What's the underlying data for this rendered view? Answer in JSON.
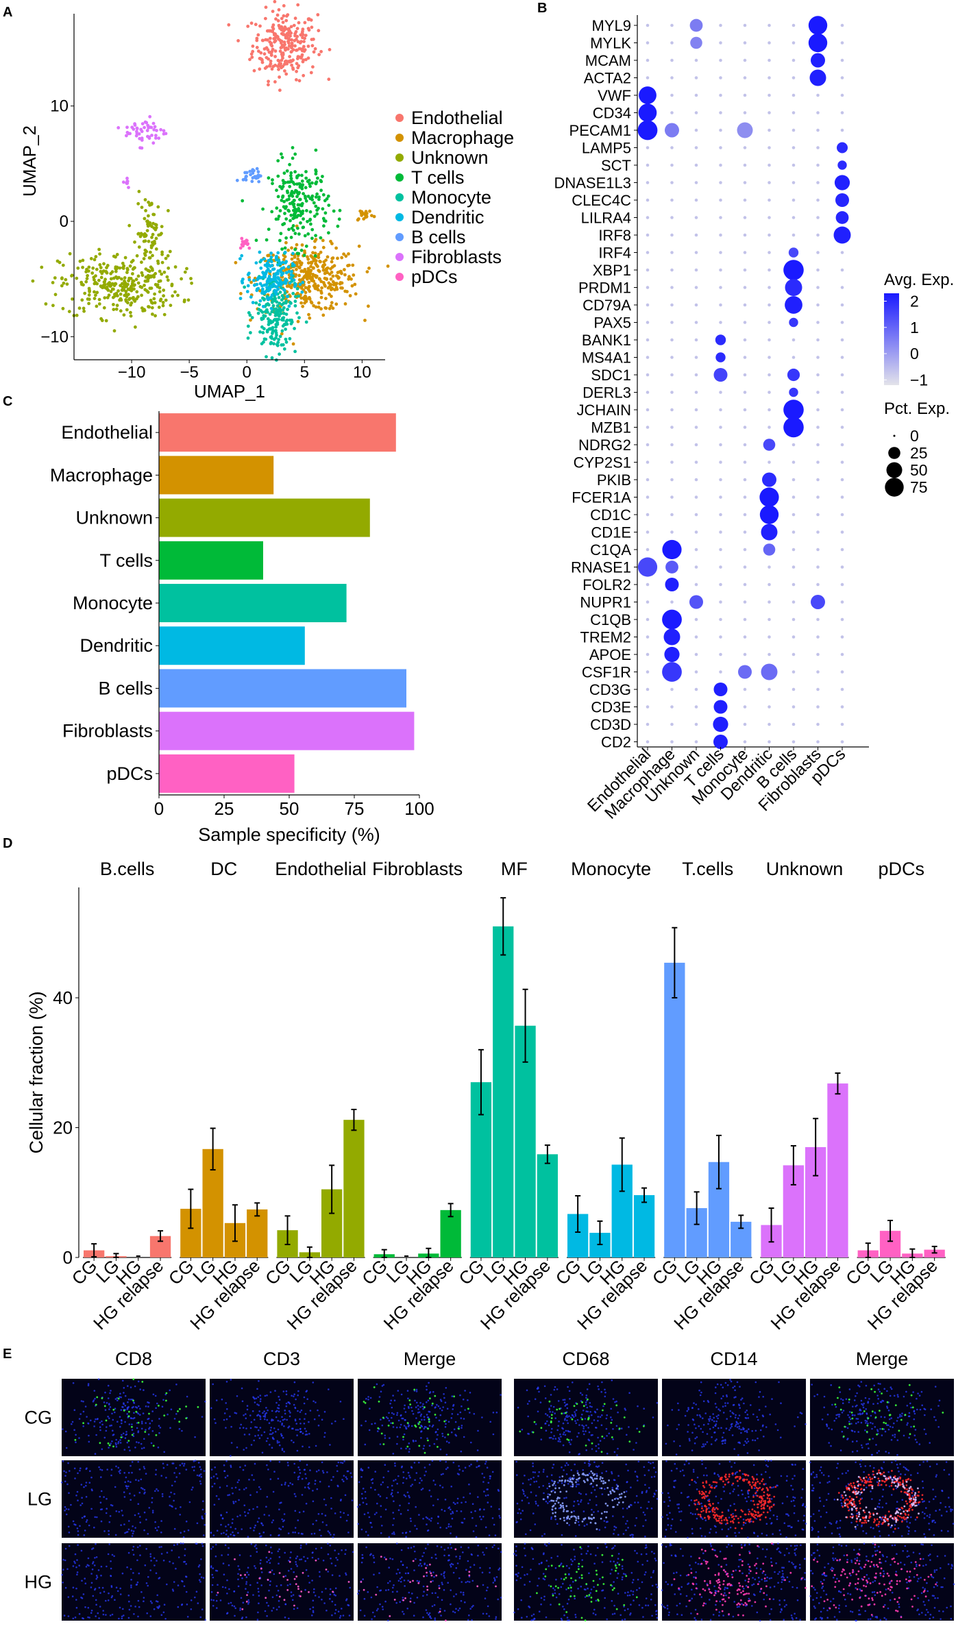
{
  "panels": {
    "a": "A",
    "b": "B",
    "c": "C",
    "d": "D",
    "e": "E"
  },
  "colors": {
    "Endothelial": "#F8766D",
    "Macrophage": "#D39200",
    "Unknown": "#93AA00",
    "T cells": "#00BA38",
    "Monocyte": "#00C19F",
    "Dendritic": "#00B9E3",
    "B cells": "#619CFF",
    "Fibroblasts": "#DB72FB",
    "pDCs": "#FF61C3",
    "dot_low": "#d9d9e6",
    "dot_high": "#1a1aff",
    "axis": "#000000"
  },
  "chart_data": [
    {
      "id": "umap",
      "type": "scatter",
      "xlabel": "UMAP_1",
      "ylabel": "UMAP_2",
      "xlim": [
        -15,
        12
      ],
      "ylim": [
        -12,
        18
      ],
      "xticks": [
        "-10",
        "-5",
        "0",
        "5",
        "10"
      ],
      "xtick_values": [
        -10,
        -5,
        0,
        5,
        10
      ],
      "yticks": [
        "10",
        "0",
        "-10"
      ],
      "ytick_values": [
        10,
        0,
        -10
      ],
      "legend": [
        "Endothelial",
        "Macrophage",
        "Unknown",
        "T cells",
        "Monocyte",
        "Dendritic",
        "B cells",
        "Fibroblasts",
        "pDCs"
      ],
      "clusters": [
        {
          "name": "Endothelial",
          "cx": 3.3,
          "cy": 15.3,
          "sx": 1.4,
          "sy": 1.5,
          "n": 260
        },
        {
          "name": "Macrophage",
          "cx": 5.3,
          "cy": -5.0,
          "sx": 2.2,
          "sy": 1.4,
          "n": 380
        },
        {
          "name": "Macrophage",
          "cx": 10.2,
          "cy": 0.6,
          "sx": 0.4,
          "sy": 0.3,
          "n": 18
        },
        {
          "name": "Unknown",
          "cx": -11.0,
          "cy": -5.5,
          "sx": 2.6,
          "sy": 1.4,
          "n": 320
        },
        {
          "name": "Unknown",
          "cx": -8.4,
          "cy": -1.0,
          "sx": 0.6,
          "sy": 1.6,
          "n": 70
        },
        {
          "name": "T cells",
          "cx": 4.5,
          "cy": 1.5,
          "sx": 1.3,
          "sy": 1.8,
          "n": 220
        },
        {
          "name": "Monocyte",
          "cx": 2.5,
          "cy": -8.0,
          "sx": 0.9,
          "sy": 1.8,
          "n": 200
        },
        {
          "name": "Dendritic",
          "cx": 2.0,
          "cy": -5.0,
          "sx": 1.0,
          "sy": 1.1,
          "n": 160
        },
        {
          "name": "B cells",
          "cx": 0.5,
          "cy": 4.0,
          "sx": 0.4,
          "sy": 0.3,
          "n": 30
        },
        {
          "name": "Fibroblasts",
          "cx": -8.8,
          "cy": 7.8,
          "sx": 0.9,
          "sy": 0.6,
          "n": 50
        },
        {
          "name": "Fibroblasts",
          "cx": -10.5,
          "cy": 3.5,
          "sx": 0.2,
          "sy": 0.3,
          "n": 8
        },
        {
          "name": "pDCs",
          "cx": -0.2,
          "cy": -1.8,
          "sx": 0.3,
          "sy": 0.3,
          "n": 14
        }
      ]
    },
    {
      "id": "dotplot",
      "type": "scatter",
      "genes": [
        "MYL9",
        "MYLK",
        "MCAM",
        "ACTA2",
        "VWF",
        "CD34",
        "PECAM1",
        "LAMP5",
        "SCT",
        "DNASE1L3",
        "CLEC4C",
        "LILRA4",
        "IRF8",
        "IRF4",
        "XBP1",
        "PRDM1",
        "CD79A",
        "PAX5",
        "BANK1",
        "MS4A1",
        "SDC1",
        "DERL3",
        "JCHAIN",
        "MZB1",
        "NDRG2",
        "CYP2S1",
        "PKIB",
        "FCER1A",
        "CD1C",
        "CD1E",
        "C1QA",
        "RNASE1",
        "FOLR2",
        "NUPR1",
        "C1QB",
        "TREM2",
        "APOE",
        "CSF1R",
        "CD3G",
        "CD3E",
        "CD3D",
        "CD2"
      ],
      "cell_types": [
        "Endothelial",
        "Macrophage",
        "Unknown",
        "T cells",
        "Monocyte",
        "Dendritic",
        "B cells",
        "Fibroblasts",
        "pDCs"
      ],
      "highlights": [
        {
          "gene": "MYL9",
          "col": "Fibroblasts",
          "pct": 75,
          "exp": 2.3
        },
        {
          "gene": "MYLK",
          "col": "Fibroblasts",
          "pct": 75,
          "exp": 2.3
        },
        {
          "gene": "MCAM",
          "col": "Fibroblasts",
          "pct": 40,
          "exp": 2.2
        },
        {
          "gene": "ACTA2",
          "col": "Fibroblasts",
          "pct": 55,
          "exp": 2.2
        },
        {
          "gene": "VWF",
          "col": "Endothelial",
          "pct": 65,
          "exp": 2.3
        },
        {
          "gene": "CD34",
          "col": "Endothelial",
          "pct": 70,
          "exp": 2.3
        },
        {
          "gene": "PECAM1",
          "col": "Endothelial",
          "pct": 85,
          "exp": 2.3
        },
        {
          "gene": "LAMP5",
          "col": "pDCs",
          "pct": 20,
          "exp": 2.0
        },
        {
          "gene": "SCT",
          "col": "pDCs",
          "pct": 12,
          "exp": 2.0
        },
        {
          "gene": "DNASE1L3",
          "col": "pDCs",
          "pct": 45,
          "exp": 2.2
        },
        {
          "gene": "CLEC4C",
          "col": "pDCs",
          "pct": 35,
          "exp": 2.1
        },
        {
          "gene": "LILRA4",
          "col": "pDCs",
          "pct": 30,
          "exp": 2.1
        },
        {
          "gene": "IRF8",
          "col": "pDCs",
          "pct": 60,
          "exp": 2.2
        },
        {
          "gene": "IRF4",
          "col": "B cells",
          "pct": 15,
          "exp": 1.5
        },
        {
          "gene": "XBP1",
          "col": "B cells",
          "pct": 90,
          "exp": 2.3
        },
        {
          "gene": "PRDM1",
          "col": "B cells",
          "pct": 60,
          "exp": 2.0
        },
        {
          "gene": "CD79A",
          "col": "B cells",
          "pct": 65,
          "exp": 2.2
        },
        {
          "gene": "PAX5",
          "col": "B cells",
          "pct": 12,
          "exp": 1.8
        },
        {
          "gene": "BANK1",
          "col": "T cells",
          "pct": 18,
          "exp": 2.0
        },
        {
          "gene": "MS4A1",
          "col": "T cells",
          "pct": 15,
          "exp": 2.0
        },
        {
          "gene": "SDC1",
          "col": "T cells",
          "pct": 35,
          "exp": 1.6
        },
        {
          "gene": "SDC1",
          "col": "B cells",
          "pct": 28,
          "exp": 1.8
        },
        {
          "gene": "DERL3",
          "col": "B cells",
          "pct": 12,
          "exp": 1.8
        },
        {
          "gene": "JCHAIN",
          "col": "B cells",
          "pct": 90,
          "exp": 2.3
        },
        {
          "gene": "MZB1",
          "col": "B cells",
          "pct": 90,
          "exp": 2.3
        },
        {
          "gene": "NDRG2",
          "col": "Dendritic",
          "pct": 25,
          "exp": 1.5
        },
        {
          "gene": "PKIB",
          "col": "Dendritic",
          "pct": 40,
          "exp": 2.0
        },
        {
          "gene": "FCER1A",
          "col": "Dendritic",
          "pct": 80,
          "exp": 2.3
        },
        {
          "gene": "CD1C",
          "col": "Dendritic",
          "pct": 75,
          "exp": 2.3
        },
        {
          "gene": "CD1E",
          "col": "Dendritic",
          "pct": 55,
          "exp": 2.2
        },
        {
          "gene": "C1QA",
          "col": "Macrophage",
          "pct": 80,
          "exp": 2.3
        },
        {
          "gene": "C1QA",
          "col": "Dendritic",
          "pct": 25,
          "exp": 1.0
        },
        {
          "gene": "RNASE1",
          "col": "Endothelial",
          "pct": 80,
          "exp": 1.5
        },
        {
          "gene": "RNASE1",
          "col": "Macrophage",
          "pct": 30,
          "exp": 1.2
        },
        {
          "gene": "FOLR2",
          "col": "Macrophage",
          "pct": 35,
          "exp": 2.2
        },
        {
          "gene": "NUPR1",
          "col": "Unknown",
          "pct": 35,
          "exp": 1.3
        },
        {
          "gene": "NUPR1",
          "col": "Fibroblasts",
          "pct": 40,
          "exp": 1.5
        },
        {
          "gene": "C1QB",
          "col": "Macrophage",
          "pct": 85,
          "exp": 2.3
        },
        {
          "gene": "TREM2",
          "col": "Macrophage",
          "pct": 55,
          "exp": 2.2
        },
        {
          "gene": "APOE",
          "col": "Macrophage",
          "pct": 45,
          "exp": 2.2
        },
        {
          "gene": "CSF1R",
          "col": "Macrophage",
          "pct": 85,
          "exp": 1.8
        },
        {
          "gene": "CSF1R",
          "col": "Monocyte",
          "pct": 35,
          "exp": 0.9
        },
        {
          "gene": "CSF1R",
          "col": "Dendritic",
          "pct": 55,
          "exp": 0.9
        },
        {
          "gene": "CD3G",
          "col": "T cells",
          "pct": 35,
          "exp": 2.2
        },
        {
          "gene": "CD3E",
          "col": "T cells",
          "pct": 35,
          "exp": 2.2
        },
        {
          "gene": "CD3D",
          "col": "T cells",
          "pct": 45,
          "exp": 2.2
        },
        {
          "gene": "CD2",
          "col": "T cells",
          "pct": 40,
          "exp": 2.2
        },
        {
          "gene": "PECAM1",
          "col": "Macrophage",
          "pct": 40,
          "exp": 0.6
        },
        {
          "gene": "PECAM1",
          "col": "Monocyte",
          "pct": 50,
          "exp": 0.3
        },
        {
          "gene": "MYL9",
          "col": "Unknown",
          "pct": 30,
          "exp": 0.6
        },
        {
          "gene": "MYLK",
          "col": "Unknown",
          "pct": 25,
          "exp": 0.5
        }
      ],
      "legend_exp_title": "Avg. Exp.",
      "legend_exp_ticks": [
        "2",
        "1",
        "0",
        "−1"
      ],
      "legend_exp_values": [
        2,
        1,
        0,
        -1
      ],
      "legend_pct_title": "Pct. Exp.",
      "legend_pct_ticks": [
        "0",
        "25",
        "50",
        "75"
      ],
      "legend_pct_values": [
        0,
        25,
        50,
        75
      ]
    },
    {
      "id": "specificity",
      "type": "bar",
      "orientation": "horizontal",
      "categories": [
        "Endothelial",
        "Macrophage",
        "Unknown",
        "T cells",
        "Monocyte",
        "Dendritic",
        "B cells",
        "Fibroblasts",
        "pDCs"
      ],
      "values": [
        91,
        44,
        81,
        40,
        72,
        56,
        95,
        98,
        52
      ],
      "xlabel": "Sample specificity (%)",
      "xlim": [
        0,
        100
      ],
      "xticks": [
        "0",
        "25",
        "50",
        "75",
        "100"
      ],
      "xtick_values": [
        0,
        25,
        50,
        75,
        100
      ]
    },
    {
      "id": "fraction",
      "type": "bar",
      "ylabel": "Cellular fraction (%)",
      "ylim": [
        0,
        57
      ],
      "yticks": [
        "0",
        "20",
        "40"
      ],
      "ytick_values": [
        0,
        20,
        40
      ],
      "groups": [
        "CG",
        "LG",
        "HG",
        "HG relapse"
      ],
      "facets": [
        {
          "title": "B.cells",
          "color_key": "Endothelial",
          "values": [
            1.1,
            0.2,
            0.0,
            3.3
          ],
          "errors": [
            1.0,
            0.4,
            0.0,
            0.8
          ]
        },
        {
          "title": "DC",
          "color_key": "Macrophage",
          "values": [
            7.5,
            16.7,
            5.3,
            7.4
          ],
          "errors": [
            3.0,
            3.2,
            2.8,
            1.0
          ]
        },
        {
          "title": "Endothelial",
          "color_key": "Unknown",
          "values": [
            4.2,
            0.8,
            10.5,
            21.2
          ],
          "errors": [
            2.2,
            0.8,
            3.7,
            1.6
          ]
        },
        {
          "title": "Fibroblasts",
          "color_key": "T cells",
          "values": [
            0.5,
            0.0,
            0.6,
            7.3
          ],
          "errors": [
            0.7,
            0.0,
            0.8,
            1.0
          ]
        },
        {
          "title": "MF",
          "color_key": "Monocyte",
          "values": [
            27.0,
            51.0,
            35.7,
            15.9
          ],
          "errors": [
            5.0,
            4.4,
            5.6,
            1.4
          ]
        },
        {
          "title": "Monocyte",
          "color_key": "Dendritic",
          "values": [
            6.7,
            3.8,
            14.3,
            9.6
          ],
          "errors": [
            2.8,
            1.8,
            4.1,
            1.1
          ]
        },
        {
          "title": "T.cells",
          "color_key": "B cells",
          "values": [
            45.4,
            7.6,
            14.7,
            5.5
          ],
          "errors": [
            5.4,
            2.5,
            4.1,
            1.0
          ]
        },
        {
          "title": "Unknown",
          "color_key": "Fibroblasts",
          "values": [
            5.0,
            14.2,
            17.0,
            26.8
          ],
          "errors": [
            2.6,
            3.0,
            4.4,
            1.6
          ]
        },
        {
          "title": "pDCs",
          "color_key": "pDCs",
          "values": [
            1.1,
            4.1,
            0.6,
            1.2
          ],
          "errors": [
            1.1,
            1.6,
            0.7,
            0.5
          ]
        }
      ]
    }
  ],
  "panel_e": {
    "col_labels": [
      "CD8",
      "CD3",
      "Merge",
      "CD68",
      "CD14",
      "Merge"
    ],
    "row_labels": [
      "CG",
      "LG",
      "HG"
    ],
    "image_modes": [
      [
        "blue-green-sparse",
        "blue",
        "blue-green-sparse",
        "blue-green",
        "blue",
        "blue-green"
      ],
      [
        "blue",
        "blue",
        "blue",
        "blue-ring",
        "red-ring",
        "red-blue-ring"
      ],
      [
        "blue",
        "blue-pink",
        "blue-pink",
        "blue-green",
        "blue-magenta",
        "blue-magenta"
      ]
    ]
  }
}
